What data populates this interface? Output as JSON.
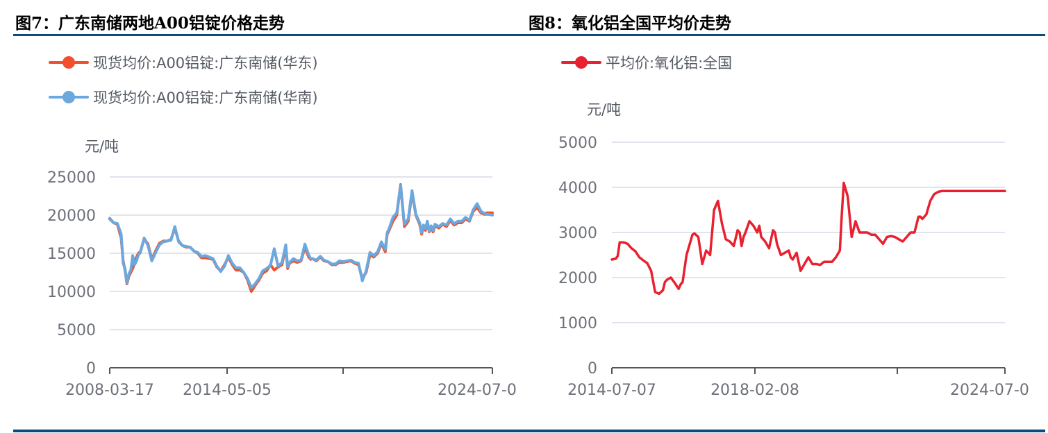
{
  "figures": [
    {
      "title": "图7：广东南储两地A00铝锭价格走势",
      "unit": "元/吨",
      "legend": [
        {
          "label": "现货均价:A00铝锭:广东南储(华东)",
          "color": "#f0502d"
        },
        {
          "label": "现货均价:A00铝锭:广东南储(华南)",
          "color": "#6aa8de"
        }
      ]
    },
    {
      "title": "图8：氧化铝全国平均价走势",
      "unit": "元/吨",
      "legend": [
        {
          "label": "平均价:氧化铝:全国",
          "color": "#e8202f"
        }
      ]
    }
  ],
  "chart_data": [
    {
      "type": "line",
      "title": "图7：广东南储两地A00铝锭价格走势",
      "xlabel": "",
      "ylabel": "元/吨",
      "ylim": [
        0,
        25000
      ],
      "yticks": [
        0,
        5000,
        10000,
        15000,
        20000,
        25000
      ],
      "xticks": [
        "2008-03-17",
        "2014-05-05",
        "",
        "2024-07-0"
      ],
      "grid": true,
      "legend_position": "top-left",
      "x_range": [
        "2008-03-17",
        "2024-07"
      ],
      "series": [
        {
          "name": "现货均价:A00铝锭:广东南储(华东)",
          "color": "#f0502d",
          "x_frac": [
            0,
            0.01,
            0.02,
            0.03,
            0.035,
            0.04,
            0.045,
            0.05,
            0.055,
            0.06,
            0.065,
            0.07,
            0.075,
            0.08,
            0.09,
            0.1,
            0.11,
            0.12,
            0.13,
            0.14,
            0.15,
            0.16,
            0.17,
            0.18,
            0.19,
            0.2,
            0.21,
            0.22,
            0.23,
            0.24,
            0.25,
            0.26,
            0.27,
            0.28,
            0.29,
            0.3,
            0.31,
            0.32,
            0.33,
            0.34,
            0.35,
            0.36,
            0.37,
            0.38,
            0.39,
            0.4,
            0.41,
            0.42,
            0.43,
            0.44,
            0.45,
            0.46,
            0.465,
            0.47,
            0.48,
            0.49,
            0.5,
            0.51,
            0.52,
            0.525,
            0.53,
            0.54,
            0.55,
            0.56,
            0.57,
            0.58,
            0.59,
            0.6,
            0.61,
            0.62,
            0.63,
            0.64,
            0.65,
            0.66,
            0.67,
            0.68,
            0.69,
            0.7,
            0.71,
            0.72,
            0.725,
            0.73,
            0.74,
            0.75,
            0.76,
            0.77,
            0.78,
            0.79,
            0.8,
            0.81,
            0.815,
            0.82,
            0.825,
            0.83,
            0.835,
            0.84,
            0.845,
            0.85,
            0.86,
            0.87,
            0.88,
            0.89,
            0.9,
            0.91,
            0.92,
            0.93,
            0.94,
            0.95,
            0.96,
            0.97,
            0.98,
            0.985,
            0.99,
            1.0
          ],
          "values": [
            19500,
            19000,
            18800,
            17000,
            14000,
            12800,
            11000,
            12000,
            12500,
            13000,
            13800,
            14500,
            15000,
            15200,
            16900,
            16200,
            14200,
            15300,
            16300,
            16600,
            16600,
            16800,
            18300,
            16600,
            16000,
            15800,
            15800,
            15300,
            15000,
            14400,
            14400,
            14300,
            14200,
            13200,
            12700,
            13500,
            14500,
            13500,
            12800,
            12800,
            12500,
            11500,
            10000,
            10800,
            11500,
            12400,
            12700,
            13500,
            12800,
            13200,
            13500,
            15800,
            13000,
            13700,
            14000,
            13800,
            14000,
            15800,
            14500,
            14200,
            14300,
            14000,
            14500,
            14000,
            13900,
            13500,
            13500,
            13800,
            13800,
            13900,
            14000,
            13700,
            13500,
            11700,
            12500,
            14800,
            14500,
            15000,
            16300,
            15200,
            17500,
            18000,
            19200,
            20000,
            24000,
            18500,
            19200,
            23000,
            20000,
            18800,
            17500,
            18500,
            18000,
            19000,
            17800,
            18400,
            17800,
            18600,
            18300,
            18800,
            18500,
            19300,
            18700,
            19000,
            19000,
            19500,
            19200,
            20500,
            21000,
            20300,
            20100,
            20300,
            20300,
            20300
          ],
          "comment": "Approximate, traced from pixels; East China series nearly overlaps South China series"
        },
        {
          "name": "现货均价:A00铝锭:广东南储(华南)",
          "color": "#6aa8de",
          "x_frac": [
            0,
            0.01,
            0.02,
            0.03,
            0.035,
            0.04,
            0.045,
            0.05,
            0.055,
            0.06,
            0.065,
            0.07,
            0.075,
            0.08,
            0.09,
            0.1,
            0.11,
            0.12,
            0.13,
            0.14,
            0.15,
            0.16,
            0.17,
            0.18,
            0.19,
            0.2,
            0.21,
            0.22,
            0.23,
            0.24,
            0.25,
            0.26,
            0.27,
            0.28,
            0.29,
            0.3,
            0.31,
            0.32,
            0.33,
            0.34,
            0.35,
            0.36,
            0.37,
            0.38,
            0.39,
            0.4,
            0.41,
            0.42,
            0.43,
            0.44,
            0.45,
            0.46,
            0.465,
            0.47,
            0.48,
            0.49,
            0.5,
            0.51,
            0.52,
            0.525,
            0.53,
            0.54,
            0.55,
            0.56,
            0.57,
            0.58,
            0.59,
            0.6,
            0.61,
            0.62,
            0.63,
            0.64,
            0.65,
            0.66,
            0.67,
            0.68,
            0.69,
            0.7,
            0.71,
            0.72,
            0.725,
            0.73,
            0.74,
            0.75,
            0.76,
            0.77,
            0.78,
            0.79,
            0.8,
            0.81,
            0.815,
            0.82,
            0.825,
            0.83,
            0.835,
            0.84,
            0.845,
            0.85,
            0.86,
            0.87,
            0.88,
            0.89,
            0.9,
            0.91,
            0.92,
            0.93,
            0.94,
            0.95,
            0.96,
            0.97,
            0.98,
            0.985,
            0.99,
            1.0
          ],
          "values": [
            19600,
            19000,
            18900,
            17500,
            13700,
            13000,
            11100,
            12300,
            12800,
            14700,
            13500,
            14000,
            14800,
            15100,
            17000,
            16000,
            14000,
            15100,
            16100,
            16500,
            16600,
            16700,
            18500,
            16500,
            16000,
            15900,
            15800,
            15300,
            15100,
            14600,
            14700,
            14500,
            14300,
            13300,
            12600,
            13300,
            14700,
            13700,
            13100,
            13100,
            12500,
            11700,
            10500,
            11000,
            11700,
            12700,
            13000,
            13400,
            15600,
            13300,
            13800,
            16100,
            13200,
            13800,
            14300,
            14000,
            14100,
            16200,
            14800,
            14300,
            14300,
            14100,
            14600,
            14100,
            13900,
            13600,
            13600,
            14000,
            13900,
            14000,
            14100,
            13800,
            13700,
            11400,
            12700,
            15100,
            14700,
            15200,
            16500,
            15500,
            17700,
            18200,
            19700,
            20300,
            23900,
            18800,
            19500,
            23200,
            20100,
            19000,
            17700,
            18700,
            18200,
            19200,
            17900,
            18600,
            18000,
            18800,
            18500,
            18900,
            18700,
            19500,
            18900,
            19200,
            19200,
            19700,
            19300,
            20700,
            21500,
            20500,
            20200,
            20100,
            20100,
            20000
          ]
        }
      ]
    },
    {
      "type": "line",
      "title": "图8：氧化铝全国平均价走势",
      "xlabel": "",
      "ylabel": "元/吨",
      "ylim": [
        0,
        5000
      ],
      "yticks": [
        0,
        1000,
        2000,
        3000,
        4000,
        5000
      ],
      "xticks": [
        "2014-07-07",
        "2018-02-08",
        "",
        "2024-07-0"
      ],
      "grid": true,
      "legend_position": "top-left",
      "x_range": [
        "2014-07-07",
        "2024-07"
      ],
      "series": [
        {
          "name": "平均价:氧化铝:全国",
          "color": "#e8202f",
          "x_frac": [
            0,
            0.01,
            0.015,
            0.02,
            0.025,
            0.03,
            0.04,
            0.05,
            0.06,
            0.07,
            0.08,
            0.09,
            0.1,
            0.11,
            0.12,
            0.13,
            0.135,
            0.14,
            0.15,
            0.16,
            0.17,
            0.175,
            0.18,
            0.19,
            0.2,
            0.205,
            0.21,
            0.22,
            0.225,
            0.23,
            0.24,
            0.25,
            0.26,
            0.27,
            0.28,
            0.29,
            0.3,
            0.31,
            0.32,
            0.325,
            0.33,
            0.335,
            0.34,
            0.35,
            0.36,
            0.37,
            0.375,
            0.38,
            0.39,
            0.4,
            0.41,
            0.415,
            0.42,
            0.43,
            0.44,
            0.45,
            0.455,
            0.46,
            0.47,
            0.48,
            0.49,
            0.5,
            0.51,
            0.52,
            0.53,
            0.54,
            0.55,
            0.56,
            0.57,
            0.58,
            0.585,
            0.59,
            0.6,
            0.61,
            0.62,
            0.63,
            0.64,
            0.65,
            0.66,
            0.67,
            0.68,
            0.69,
            0.7,
            0.71,
            0.72,
            0.73,
            0.74,
            0.75,
            0.755,
            0.76,
            0.765,
            0.77,
            0.78,
            0.785,
            0.79,
            0.8,
            0.81,
            0.82,
            0.83,
            0.84,
            0.85,
            0.86,
            0.87,
            0.88,
            0.89,
            0.9,
            0.91,
            0.92,
            0.93,
            0.94,
            0.95,
            0.955,
            0.96,
            0.97,
            0.975,
            0.98,
            0.99,
            1.0
          ],
          "values": [
            2400,
            2420,
            2480,
            2780,
            2780,
            2780,
            2750,
            2650,
            2580,
            2450,
            2380,
            2320,
            2150,
            1680,
            1640,
            1720,
            1900,
            1950,
            2000,
            1880,
            1750,
            1850,
            1900,
            2500,
            2800,
            2950,
            2980,
            2900,
            2600,
            2300,
            2600,
            2500,
            3500,
            3700,
            3200,
            2850,
            2800,
            2700,
            3050,
            3000,
            2700,
            2900,
            3000,
            3250,
            3150,
            3000,
            3150,
            2900,
            2800,
            2650,
            3050,
            3000,
            2750,
            2500,
            2550,
            2600,
            2450,
            2400,
            2550,
            2150,
            2300,
            2450,
            2300,
            2300,
            2280,
            2350,
            2350,
            2350,
            2450,
            2600,
            3400,
            4100,
            3800,
            2900,
            3250,
            3000,
            3000,
            3000,
            2950,
            2950,
            2850,
            2750,
            2900,
            2920,
            2900,
            2850,
            2800,
            2900,
            2950,
            3000,
            3000,
            3000,
            3350,
            3350,
            3300,
            3400,
            3700,
            3850,
            3900,
            3920,
            3920,
            3920,
            3920,
            3920,
            3920,
            3920,
            3920,
            3920,
            3920,
            3920,
            3920,
            3920,
            3920,
            3920,
            3920,
            3920,
            3920,
            3920
          ]
        }
      ]
    }
  ]
}
